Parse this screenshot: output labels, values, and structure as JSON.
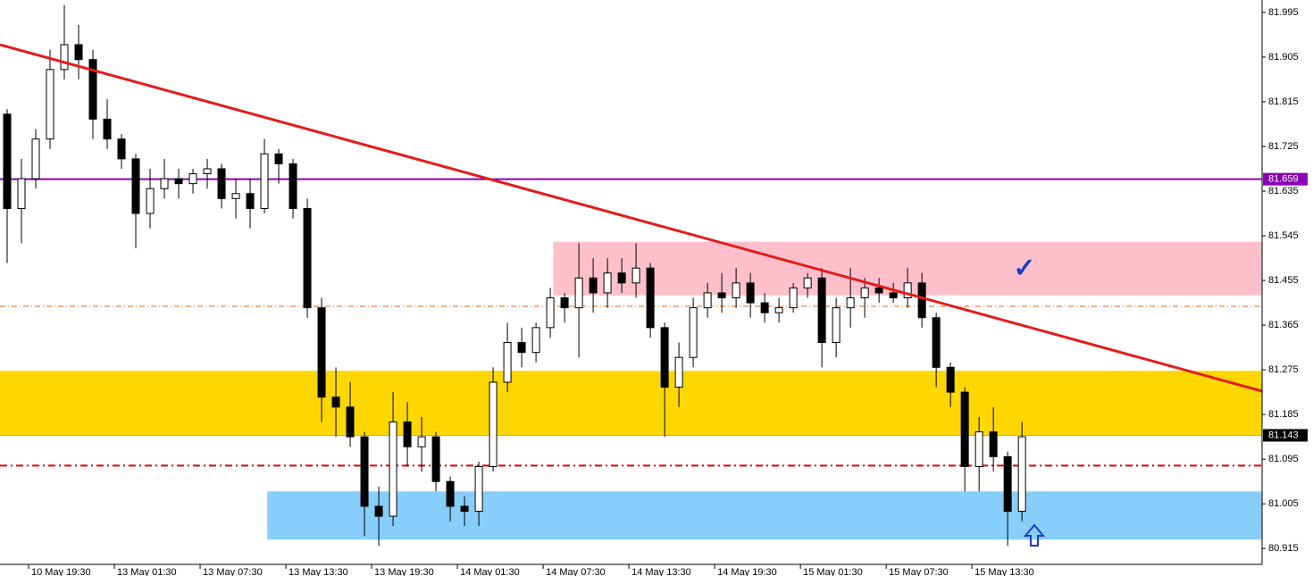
{
  "chart_data": {
    "type": "candlestick",
    "x": [
      0.5,
      1.5,
      2.5,
      3.5,
      4.5,
      5.5,
      6.5,
      7.5,
      8.5,
      9.5,
      10.5,
      11.5,
      12.5,
      13.5,
      14.5,
      15.5,
      16.5,
      17.5,
      18.5,
      19.5,
      20.5,
      21.5,
      22.5,
      23.5,
      24.5,
      25.5,
      26.5,
      27.5,
      28.5,
      29.5,
      30.5,
      31.5,
      32.5,
      33.5,
      34.5,
      35.5,
      36.5,
      37.5,
      38.5,
      39.5,
      40.5,
      41.5,
      42.5,
      43.5,
      44.5,
      45.5,
      46.5,
      47.5,
      48.5,
      49.5,
      50.5,
      51.5,
      52.5,
      53.5,
      54.5,
      55.5,
      56.5,
      57.5,
      58.5,
      59.5,
      60.5,
      61.5,
      62.5,
      63.5,
      64.5,
      65.5,
      66.5,
      67.5,
      68.5,
      69.5,
      70.5,
      71.5
    ],
    "open": [
      81.79,
      81.6,
      81.66,
      81.74,
      81.88,
      81.93,
      81.9,
      81.78,
      81.74,
      81.7,
      81.59,
      81.64,
      81.66,
      81.65,
      81.67,
      81.68,
      81.62,
      81.63,
      81.6,
      81.71,
      81.69,
      81.6,
      81.4,
      81.22,
      81.2,
      81.14,
      81.0,
      80.98,
      81.17,
      81.12,
      81.14,
      81.05,
      81.0,
      80.99,
      81.08,
      81.25,
      81.33,
      81.31,
      81.36,
      81.42,
      81.4,
      81.46,
      81.43,
      81.47,
      81.45,
      81.48,
      81.36,
      81.24,
      81.3,
      81.4,
      81.43,
      81.42,
      81.45,
      81.41,
      81.39,
      81.4,
      81.44,
      81.46,
      81.33,
      81.4,
      81.42,
      81.44,
      81.43,
      81.42,
      81.45,
      81.38,
      81.28,
      81.23,
      81.08,
      81.15,
      81.1,
      80.99
    ],
    "high": [
      81.8,
      81.7,
      81.76,
      81.92,
      82.01,
      81.97,
      81.92,
      81.82,
      81.75,
      81.71,
      81.68,
      81.7,
      81.68,
      81.68,
      81.7,
      81.69,
      81.66,
      81.66,
      81.74,
      81.72,
      81.7,
      81.62,
      81.42,
      81.28,
      81.25,
      81.15,
      81.04,
      81.23,
      81.21,
      81.18,
      81.15,
      81.06,
      81.02,
      81.09,
      81.28,
      81.37,
      81.36,
      81.37,
      81.44,
      81.43,
      81.53,
      81.5,
      81.5,
      81.5,
      81.53,
      81.49,
      81.37,
      81.33,
      81.42,
      81.45,
      81.47,
      81.48,
      81.47,
      81.43,
      81.42,
      81.45,
      81.47,
      81.48,
      81.42,
      81.48,
      81.46,
      81.46,
      81.45,
      81.48,
      81.47,
      81.39,
      81.29,
      81.24,
      81.18,
      81.2,
      81.11,
      81.17
    ],
    "low": [
      81.49,
      81.53,
      81.64,
      81.72,
      81.86,
      81.86,
      81.74,
      81.72,
      81.68,
      81.52,
      81.56,
      81.62,
      81.62,
      81.63,
      81.64,
      81.6,
      81.58,
      81.56,
      81.59,
      81.65,
      81.58,
      81.38,
      81.17,
      81.14,
      81.12,
      80.94,
      80.92,
      80.96,
      81.08,
      81.07,
      81.03,
      80.97,
      80.96,
      80.96,
      81.07,
      81.23,
      81.28,
      81.29,
      81.34,
      81.37,
      81.3,
      81.39,
      81.4,
      81.43,
      81.42,
      81.34,
      81.14,
      81.2,
      81.28,
      81.38,
      81.39,
      81.4,
      81.38,
      81.37,
      81.37,
      81.39,
      81.42,
      81.28,
      81.3,
      81.36,
      81.38,
      81.41,
      81.41,
      81.4,
      81.36,
      81.24,
      81.2,
      81.03,
      81.03,
      81.07,
      80.92,
      80.97
    ],
    "close": [
      81.6,
      81.66,
      81.74,
      81.88,
      81.93,
      81.9,
      81.78,
      81.74,
      81.7,
      81.59,
      81.64,
      81.66,
      81.65,
      81.67,
      81.68,
      81.62,
      81.63,
      81.6,
      81.71,
      81.69,
      81.6,
      81.4,
      81.22,
      81.2,
      81.14,
      81.0,
      80.98,
      81.17,
      81.12,
      81.14,
      81.05,
      81.0,
      80.99,
      81.08,
      81.25,
      81.33,
      81.31,
      81.36,
      81.42,
      81.4,
      81.46,
      81.43,
      81.47,
      81.45,
      81.48,
      81.36,
      81.24,
      81.3,
      81.4,
      81.43,
      81.42,
      81.45,
      81.41,
      81.39,
      81.4,
      81.44,
      81.46,
      81.33,
      81.4,
      81.42,
      81.44,
      81.43,
      81.42,
      81.45,
      81.38,
      81.28,
      81.23,
      81.08,
      81.15,
      81.1,
      80.99,
      81.14
    ],
    "color": "#000000",
    "xlim": [
      0,
      88.3
    ],
    "xticks": [
      {
        "value": 2,
        "label": "10 May 19:30"
      },
      {
        "value": 8,
        "label": "13 May 01:30"
      },
      {
        "value": 14,
        "label": "13 May 07:30"
      },
      {
        "value": 20,
        "label": "13 May 13:30"
      },
      {
        "value": 26,
        "label": "13 May 19:30"
      },
      {
        "value": 32,
        "label": "14 May 01:30"
      },
      {
        "value": 38,
        "label": "14 May 07:30"
      },
      {
        "value": 44,
        "label": "14 May 13:30"
      },
      {
        "value": 50,
        "label": "14 May 19:30"
      },
      {
        "value": 56,
        "label": "15 May 01:30"
      },
      {
        "value": 62,
        "label": "15 May 07:30"
      },
      {
        "value": 68,
        "label": "15 May 13:30"
      }
    ],
    "ylim": [
      80.883,
      82.02
    ],
    "yticks": [
      81.995,
      81.905,
      81.815,
      81.725,
      81.635,
      81.545,
      81.455,
      81.365,
      81.275,
      81.185,
      81.095,
      81.005,
      80.915
    ],
    "zones": [
      {
        "x0": 38.7,
        "y0": 81.425,
        "y1": 81.533,
        "color": "#ffc0cb"
      },
      {
        "x0": 0,
        "y0": 81.142,
        "y1": 81.273,
        "color": "#ffd700"
      },
      {
        "x0": 18.7,
        "y0": 80.933,
        "y1": 81.03,
        "color": "#87cefa"
      }
    ],
    "levels": [
      {
        "value": 81.659,
        "color": "#8b00b5",
        "style": "solid",
        "tag": true
      },
      {
        "value": 81.143,
        "color": "#a8a8a8",
        "style": "solid",
        "tag": true
      },
      {
        "value": 81.082,
        "color": "#e00000",
        "style": "dashdot-thick",
        "tag": false
      },
      {
        "value": 81.403,
        "color": "#d2691e",
        "style": "dashdot",
        "tag": false
      }
    ],
    "trendline": {
      "x": [
        0,
        88.3
      ],
      "y": [
        81.93,
        81.232
      ],
      "color": "#e31c1c"
    }
  }
}
